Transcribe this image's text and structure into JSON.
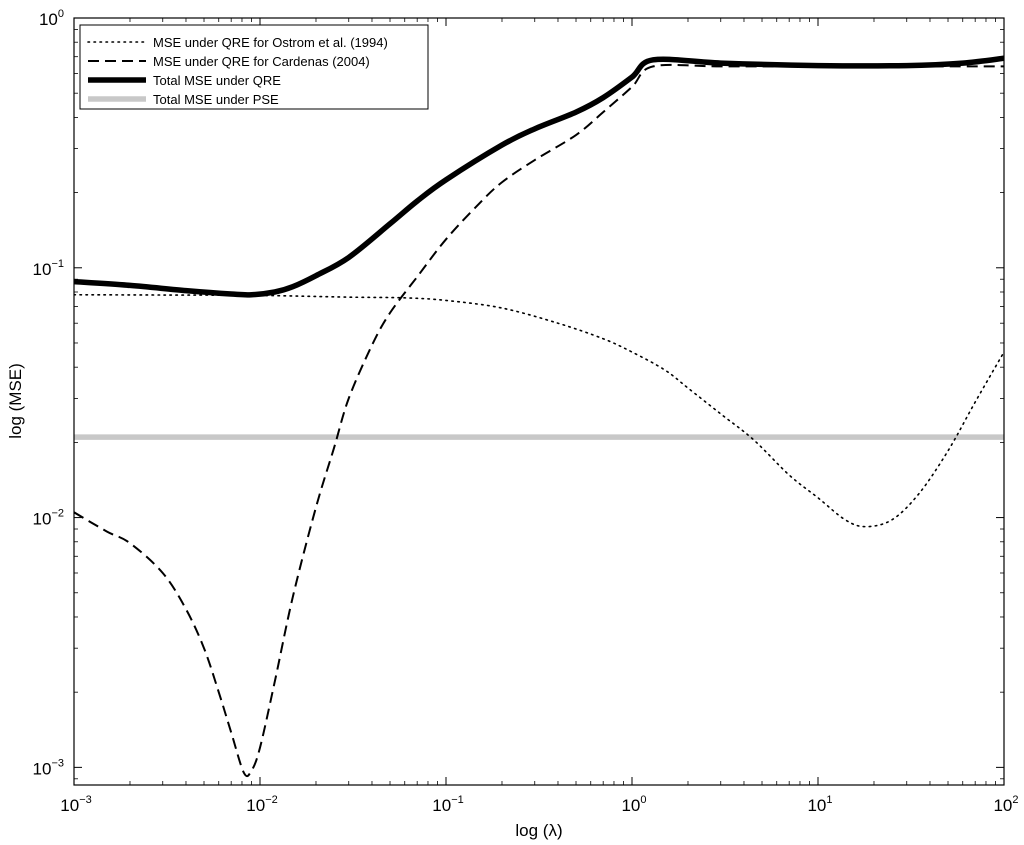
{
  "chart_data": {
    "type": "line",
    "xlabel": "log (λ)",
    "ylabel": "log (MSE)",
    "x_scale": "log",
    "y_scale": "log",
    "xlim": [
      0.001,
      100
    ],
    "ylim": [
      0.00085,
      1
    ],
    "grid": false,
    "legend_position": "top-left",
    "x_ticks": [
      {
        "value": 0.001,
        "base": "10",
        "exp": "−3"
      },
      {
        "value": 0.01,
        "base": "10",
        "exp": "−2"
      },
      {
        "value": 0.1,
        "base": "10",
        "exp": "−1"
      },
      {
        "value": 1,
        "base": "10",
        "exp": "0"
      },
      {
        "value": 10,
        "base": "10",
        "exp": "1"
      },
      {
        "value": 100,
        "base": "10",
        "exp": "2"
      }
    ],
    "y_ticks": [
      {
        "value": 0.001,
        "base": "10",
        "exp": "−3"
      },
      {
        "value": 0.01,
        "base": "10",
        "exp": "−2"
      },
      {
        "value": 0.1,
        "base": "10",
        "exp": "−1"
      },
      {
        "value": 1,
        "base": "10",
        "exp": "0"
      }
    ],
    "series": [
      {
        "name": "MSE under QRE for Ostrom et al. (1994)",
        "style": "dotted",
        "color": "#000000",
        "points": [
          [
            0.001,
            0.078
          ],
          [
            0.003,
            0.0778
          ],
          [
            0.01,
            0.0775
          ],
          [
            0.03,
            0.0763
          ],
          [
            0.06,
            0.0758
          ],
          [
            0.1,
            0.074
          ],
          [
            0.2,
            0.069
          ],
          [
            0.4,
            0.06
          ],
          [
            0.7,
            0.052
          ],
          [
            1.0,
            0.046
          ],
          [
            1.5,
            0.039
          ],
          [
            2.0,
            0.033
          ],
          [
            3.0,
            0.026
          ],
          [
            4.5,
            0.0205
          ],
          [
            7.0,
            0.0148
          ],
          [
            10,
            0.012
          ],
          [
            14,
            0.0098
          ],
          [
            18,
            0.0092
          ],
          [
            25,
            0.0098
          ],
          [
            35,
            0.0125
          ],
          [
            50,
            0.0185
          ],
          [
            70,
            0.029
          ],
          [
            100,
            0.046
          ]
        ]
      },
      {
        "name": "MSE under QRE for Cardenas (2004)",
        "style": "dashed",
        "color": "#000000",
        "points": [
          [
            0.001,
            0.0105
          ],
          [
            0.0015,
            0.0088
          ],
          [
            0.002,
            0.0079
          ],
          [
            0.003,
            0.006
          ],
          [
            0.004,
            0.0043
          ],
          [
            0.005,
            0.003
          ],
          [
            0.006,
            0.002
          ],
          [
            0.007,
            0.00138
          ],
          [
            0.0082,
            0.00095
          ],
          [
            0.009,
            0.00097
          ],
          [
            0.01,
            0.0012
          ],
          [
            0.012,
            0.0022
          ],
          [
            0.015,
            0.0048
          ],
          [
            0.02,
            0.011
          ],
          [
            0.025,
            0.019
          ],
          [
            0.03,
            0.03
          ],
          [
            0.04,
            0.049
          ],
          [
            0.05,
            0.066
          ],
          [
            0.07,
            0.092
          ],
          [
            0.1,
            0.13
          ],
          [
            0.15,
            0.18
          ],
          [
            0.2,
            0.22
          ],
          [
            0.3,
            0.27
          ],
          [
            0.5,
            0.34
          ],
          [
            0.7,
            0.42
          ],
          [
            1.0,
            0.53
          ],
          [
            1.3,
            0.64
          ],
          [
            3,
            0.64
          ],
          [
            10,
            0.64
          ],
          [
            30,
            0.64
          ],
          [
            100,
            0.64
          ]
        ]
      },
      {
        "name": "Total MSE under QRE",
        "style": "solid-thick",
        "color": "#000000",
        "points": [
          [
            0.001,
            0.088
          ],
          [
            0.002,
            0.085
          ],
          [
            0.004,
            0.081
          ],
          [
            0.007,
            0.0785
          ],
          [
            0.009,
            0.078
          ],
          [
            0.012,
            0.08
          ],
          [
            0.015,
            0.084
          ],
          [
            0.02,
            0.093
          ],
          [
            0.03,
            0.11
          ],
          [
            0.05,
            0.15
          ],
          [
            0.07,
            0.185
          ],
          [
            0.1,
            0.225
          ],
          [
            0.2,
            0.31
          ],
          [
            0.3,
            0.36
          ],
          [
            0.5,
            0.42
          ],
          [
            0.7,
            0.48
          ],
          [
            1.0,
            0.58
          ],
          [
            1.3,
            0.68
          ],
          [
            3,
            0.66
          ],
          [
            10,
            0.645
          ],
          [
            30,
            0.645
          ],
          [
            60,
            0.66
          ],
          [
            100,
            0.69
          ]
        ]
      },
      {
        "name": "Total MSE under PSE",
        "style": "solid-gray",
        "color": "#c8c8c8",
        "points": [
          [
            0.001,
            0.021
          ],
          [
            100,
            0.021
          ]
        ]
      }
    ]
  }
}
